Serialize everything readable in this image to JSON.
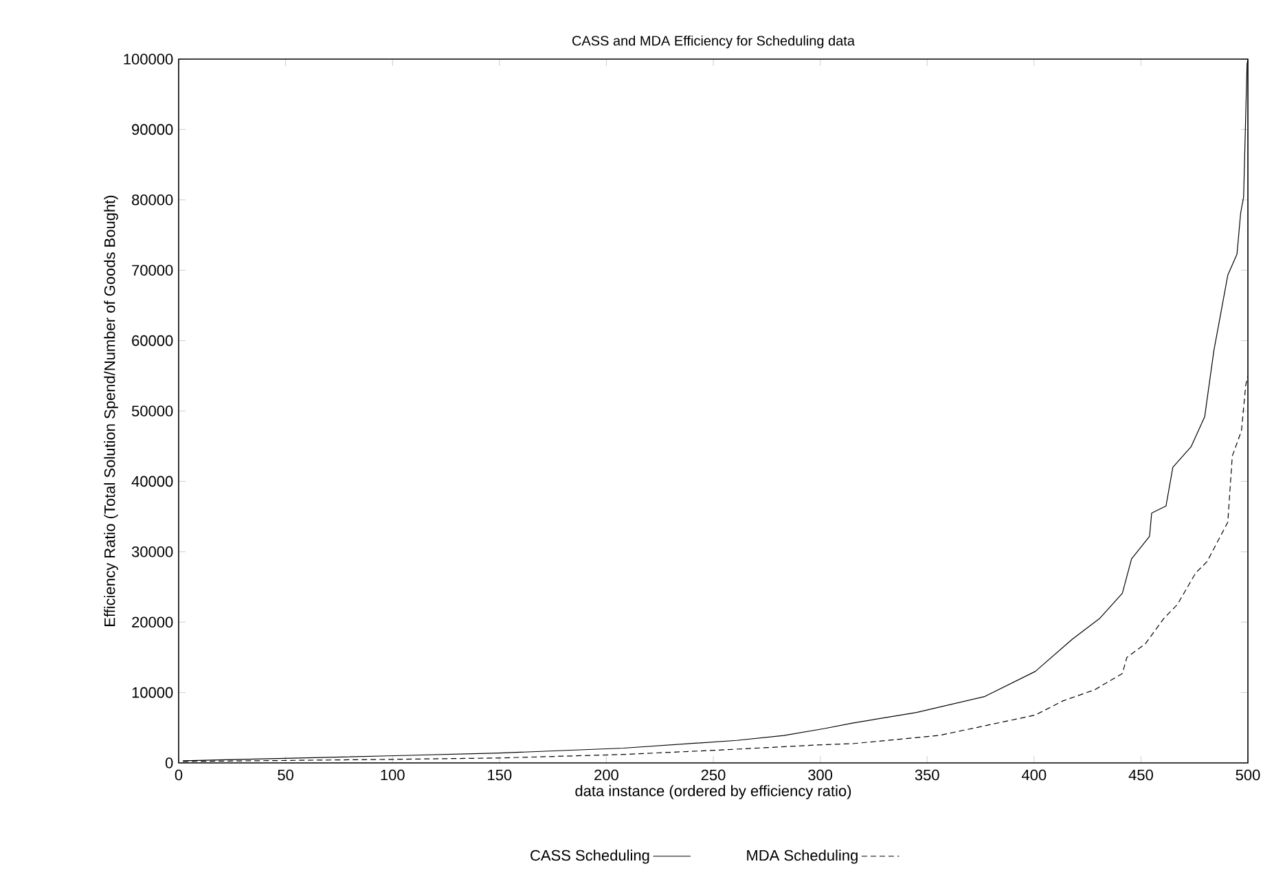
{
  "chart_data": {
    "type": "line",
    "title": "CASS and MDA Efficiency for Scheduling data",
    "xlabel": "data instance (ordered by efficiency ratio)",
    "ylabel": "Efficiency Ratio (Total Solution Spend/Number of Goods Bought)",
    "xlim": [
      0,
      500
    ],
    "ylim": [
      0,
      100000
    ],
    "xticks": [
      0,
      50,
      100,
      150,
      200,
      250,
      300,
      350,
      400,
      450,
      500
    ],
    "yticks": [
      0,
      10000,
      20000,
      30000,
      40000,
      50000,
      60000,
      70000,
      80000,
      90000,
      100000
    ],
    "grid": false,
    "legend": "bottom",
    "marker": "none",
    "series": [
      {
        "name": "CASS Scheduling",
        "color": "#000000",
        "line_style": "solid",
        "x": [
          2,
          98,
          150,
          208,
          261,
          283,
          302,
          315,
          345,
          377,
          400.6,
          418,
          430.6,
          441.3,
          445.6,
          454,
          455,
          461.7,
          464.9,
          473.4,
          479.8,
          484.1,
          486.3,
          490.6,
          494.9,
          496.6,
          498,
          499.6,
          500
        ],
        "values": [
          300,
          1000,
          1400,
          2100,
          3200,
          3900,
          4880,
          5660,
          7160,
          9440,
          13000,
          17600,
          20500,
          24100,
          29000,
          32200,
          35500,
          36500,
          42000,
          44900,
          49200,
          58600,
          62200,
          69300,
          72300,
          78100,
          80400,
          99300,
          100000
        ]
      },
      {
        "name": "MDA Scheduling",
        "color": "#000000",
        "line_style": "dashed",
        "x": [
          2,
          98,
          150,
          208,
          251,
          302,
          315,
          355.6,
          400.6,
          413.4,
          428.4,
          441.3,
          443.4,
          452,
          460.6,
          467,
          475.6,
          480.9,
          490.6,
          492.7,
          497,
          499,
          500
        ],
        "values": [
          200,
          500,
          700,
          1200,
          1800,
          2600,
          2730,
          3900,
          6800,
          8800,
          10400,
          12700,
          15000,
          16900,
          20500,
          22500,
          27000,
          28600,
          34200,
          43600,
          47200,
          53700,
          55000
        ]
      }
    ]
  }
}
